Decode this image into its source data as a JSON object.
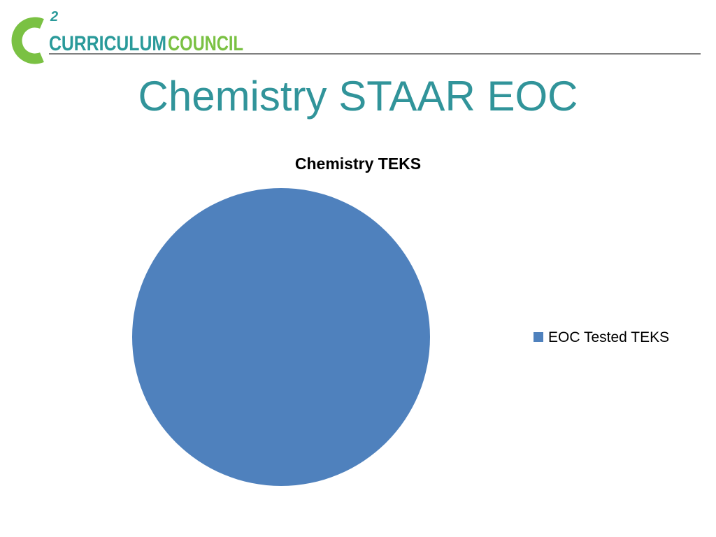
{
  "logo": {
    "superscript": "2",
    "word1": "CURRICULUM",
    "word2": "COUNCIL"
  },
  "slide_title": "Chemistry STAAR EOC",
  "chart_data": {
    "type": "pie",
    "title": "Chemistry TEKS",
    "categories": [
      "EOC Tested TEKS"
    ],
    "values": [
      100
    ],
    "colors": [
      "#4f81bd"
    ],
    "legend": "right"
  }
}
